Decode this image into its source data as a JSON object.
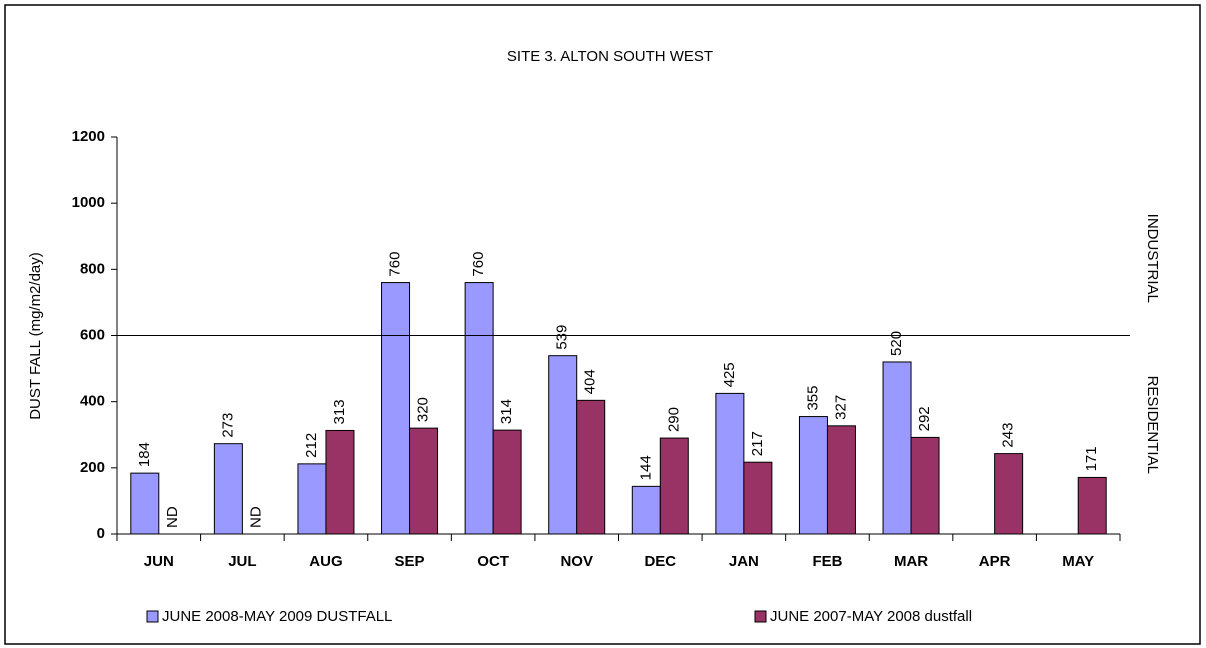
{
  "chart_data": {
    "type": "bar",
    "title": "SITE 3. ALTON SOUTH WEST",
    "y_label": "DUST FALL  (mg/m2/day)",
    "categories": [
      "JUN",
      "JUL",
      "AUG",
      "SEP",
      "OCT",
      "NOV",
      "DEC",
      "JAN",
      "FEB",
      "MAR",
      "APR",
      "MAY"
    ],
    "series": [
      {
        "name": "JUNE 2008-MAY 2009 DUSTFALL",
        "color": "#9999ff",
        "values": [
          184,
          273,
          212,
          760,
          760,
          539,
          144,
          425,
          355,
          520,
          null,
          null
        ]
      },
      {
        "name": "JUNE 2007-MAY 2008 dustfall",
        "color": "#993366",
        "values": [
          null,
          null,
          313,
          320,
          314,
          404,
          290,
          217,
          327,
          292,
          243,
          171
        ],
        "value_labels": [
          "ND",
          "ND",
          "313",
          "320",
          "314",
          "404",
          "290",
          "217",
          "327",
          "292",
          "243",
          "171"
        ]
      }
    ],
    "ylim": [
      0,
      1200
    ],
    "yticks": [
      0,
      200,
      400,
      600,
      800,
      1000,
      1200
    ],
    "grid": false,
    "legend": "bottom",
    "threshold": {
      "value": 600,
      "above_label": "INDUSTRIAL",
      "below_label": "RESIDENTIAL"
    }
  }
}
